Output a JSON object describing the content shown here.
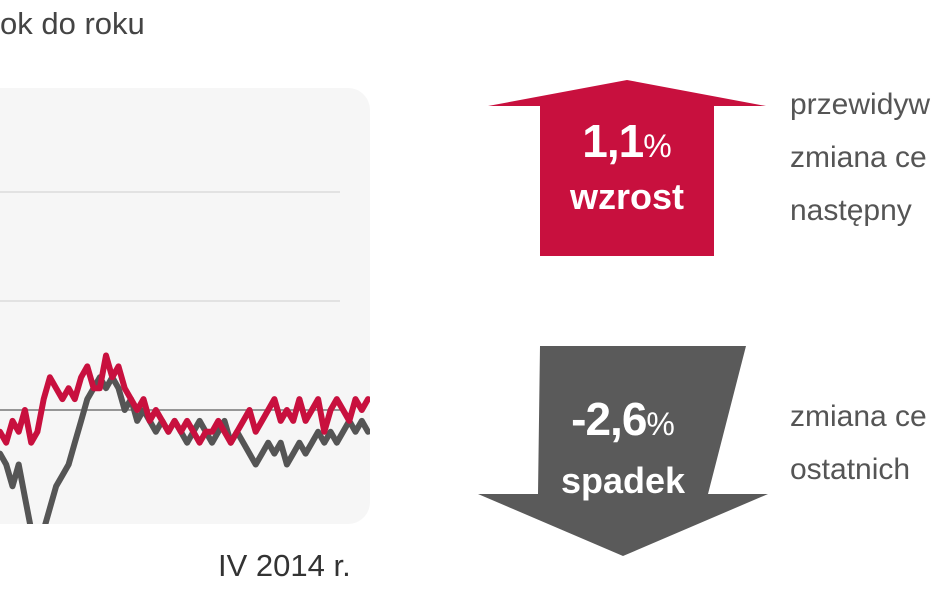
{
  "header": {
    "text": "ok do roku"
  },
  "chart_data": {
    "type": "line",
    "x_end_label": "IV 2014 r.",
    "ylim": [
      -3,
      3
    ],
    "reference_line_y": 0,
    "gridlines_y": [
      1,
      2
    ],
    "grid": true,
    "series": [
      {
        "color": "#c8103e",
        "values": [
          -0.2,
          -0.3,
          -0.1,
          -0.2,
          0.0,
          -0.3,
          -0.2,
          0.1,
          0.3,
          0.2,
          0.1,
          0.2,
          0.1,
          0.3,
          0.4,
          0.2,
          0.2,
          0.5,
          0.3,
          0.4,
          0.2,
          0.1,
          0.0,
          0.1,
          -0.1,
          0.0,
          -0.1,
          -0.2,
          -0.1,
          -0.2,
          -0.1,
          -0.2,
          -0.3,
          -0.2,
          -0.2,
          -0.1,
          -0.2,
          -0.3,
          -0.2,
          -0.1,
          0.0,
          -0.2,
          -0.1,
          0.0,
          0.1,
          -0.1,
          0.0,
          -0.1,
          0.1,
          -0.1,
          0.0,
          0.1,
          -0.2,
          0.0,
          0.1,
          0.0,
          -0.1,
          0.1,
          0.0,
          0.1
        ]
      },
      {
        "color": "#555555",
        "values": [
          -0.4,
          -0.5,
          -0.7,
          -0.5,
          -0.8,
          -1.1,
          -1.3,
          -1.1,
          -0.9,
          -0.7,
          -0.6,
          -0.5,
          -0.3,
          -0.1,
          0.1,
          0.2,
          0.3,
          0.2,
          0.3,
          0.2,
          0.0,
          0.1,
          -0.1,
          0.0,
          -0.1,
          -0.2,
          -0.1,
          -0.2,
          -0.1,
          -0.2,
          -0.3,
          -0.2,
          -0.1,
          -0.2,
          -0.3,
          -0.2,
          -0.1,
          -0.3,
          -0.2,
          -0.3,
          -0.4,
          -0.5,
          -0.4,
          -0.3,
          -0.4,
          -0.3,
          -0.5,
          -0.4,
          -0.3,
          -0.4,
          -0.3,
          -0.2,
          -0.3,
          -0.2,
          -0.3,
          -0.2,
          -0.1,
          -0.2,
          -0.1,
          -0.2
        ]
      }
    ]
  },
  "callouts": [
    {
      "value": "1,1",
      "unit": "%",
      "word": "wzrost",
      "direction": "up",
      "color": "#c8103e",
      "desc_lines": [
        "przewidyw",
        "zmiana ce",
        "następny"
      ]
    },
    {
      "value": "-2,6",
      "unit": "%",
      "word": "spadek",
      "direction": "down",
      "color": "#5a5a5a",
      "desc_lines": [
        "zmiana ce",
        "ostatnich"
      ]
    }
  ]
}
